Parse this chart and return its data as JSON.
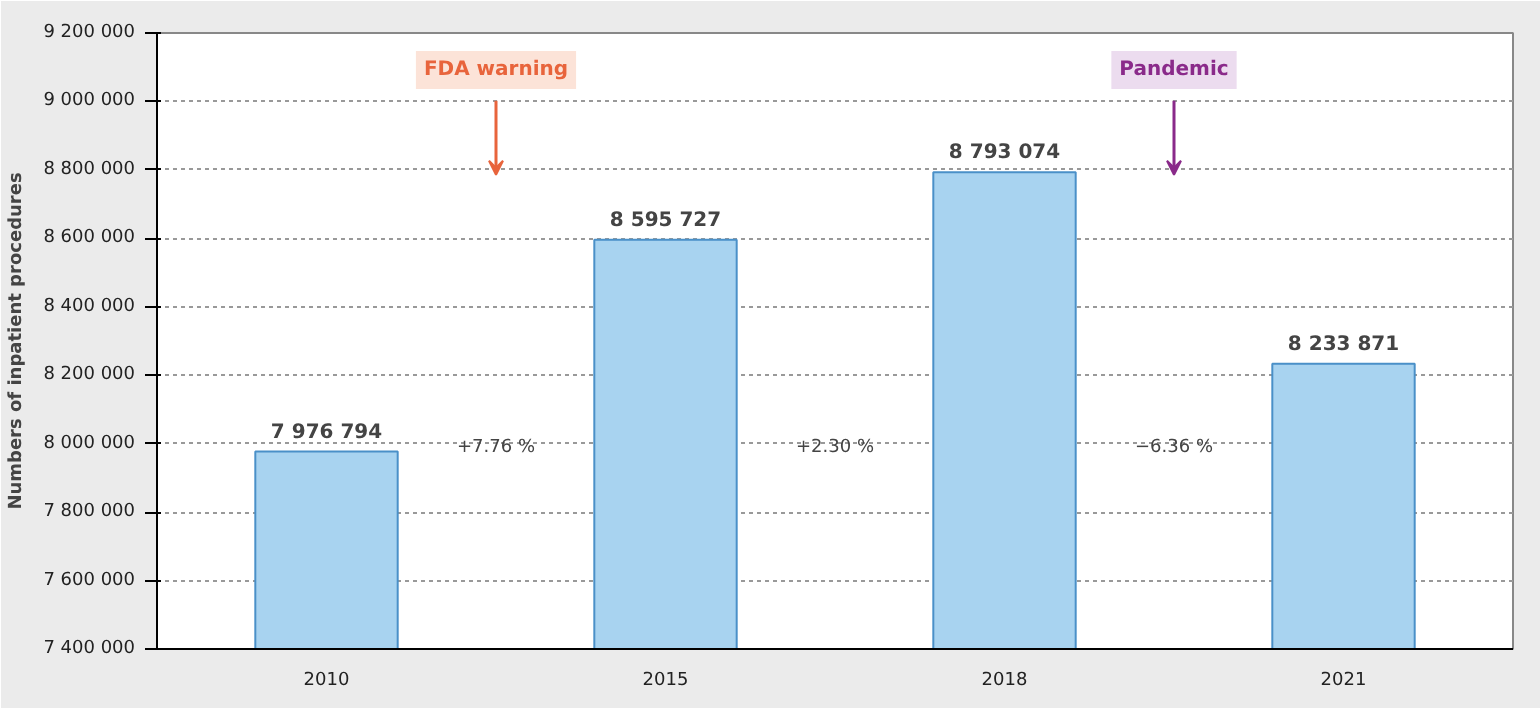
{
  "chart_data": {
    "type": "bar",
    "ylabel": "Numbers of inpatient procedures",
    "categories": [
      "2010",
      "2015",
      "2018",
      "2021"
    ],
    "values": [
      7976794,
      8595727,
      8793074,
      8233871
    ],
    "value_labels": [
      "7 976 794",
      "8 595 727",
      "8 793 074",
      "8 233 871"
    ],
    "color": "#a8d3f0",
    "ylim": [
      7400000,
      9200000
    ],
    "yticks": [
      {
        "value": 7400000,
        "label": "7 400 000"
      },
      {
        "value": 7600000,
        "label": "7 600 000"
      },
      {
        "value": 7800000,
        "label": "7 800 000"
      },
      {
        "value": 8000000,
        "label": "8 000 000"
      },
      {
        "value": 8200000,
        "label": "8 200 000"
      },
      {
        "value": 8400000,
        "label": "8 400 000"
      },
      {
        "value": 8600000,
        "label": "8 600 000"
      },
      {
        "value": 8800000,
        "label": "8 800 000"
      },
      {
        "value": 9000000,
        "label": "9 000 000"
      },
      {
        "value": 9200000,
        "label": "9 200 000"
      }
    ],
    "grid": "y",
    "annotations": [
      "+7.76 %",
      "+2.30 %",
      "−6.36 %",
      "FDA warning",
      "Pandemic"
    ]
  }
}
